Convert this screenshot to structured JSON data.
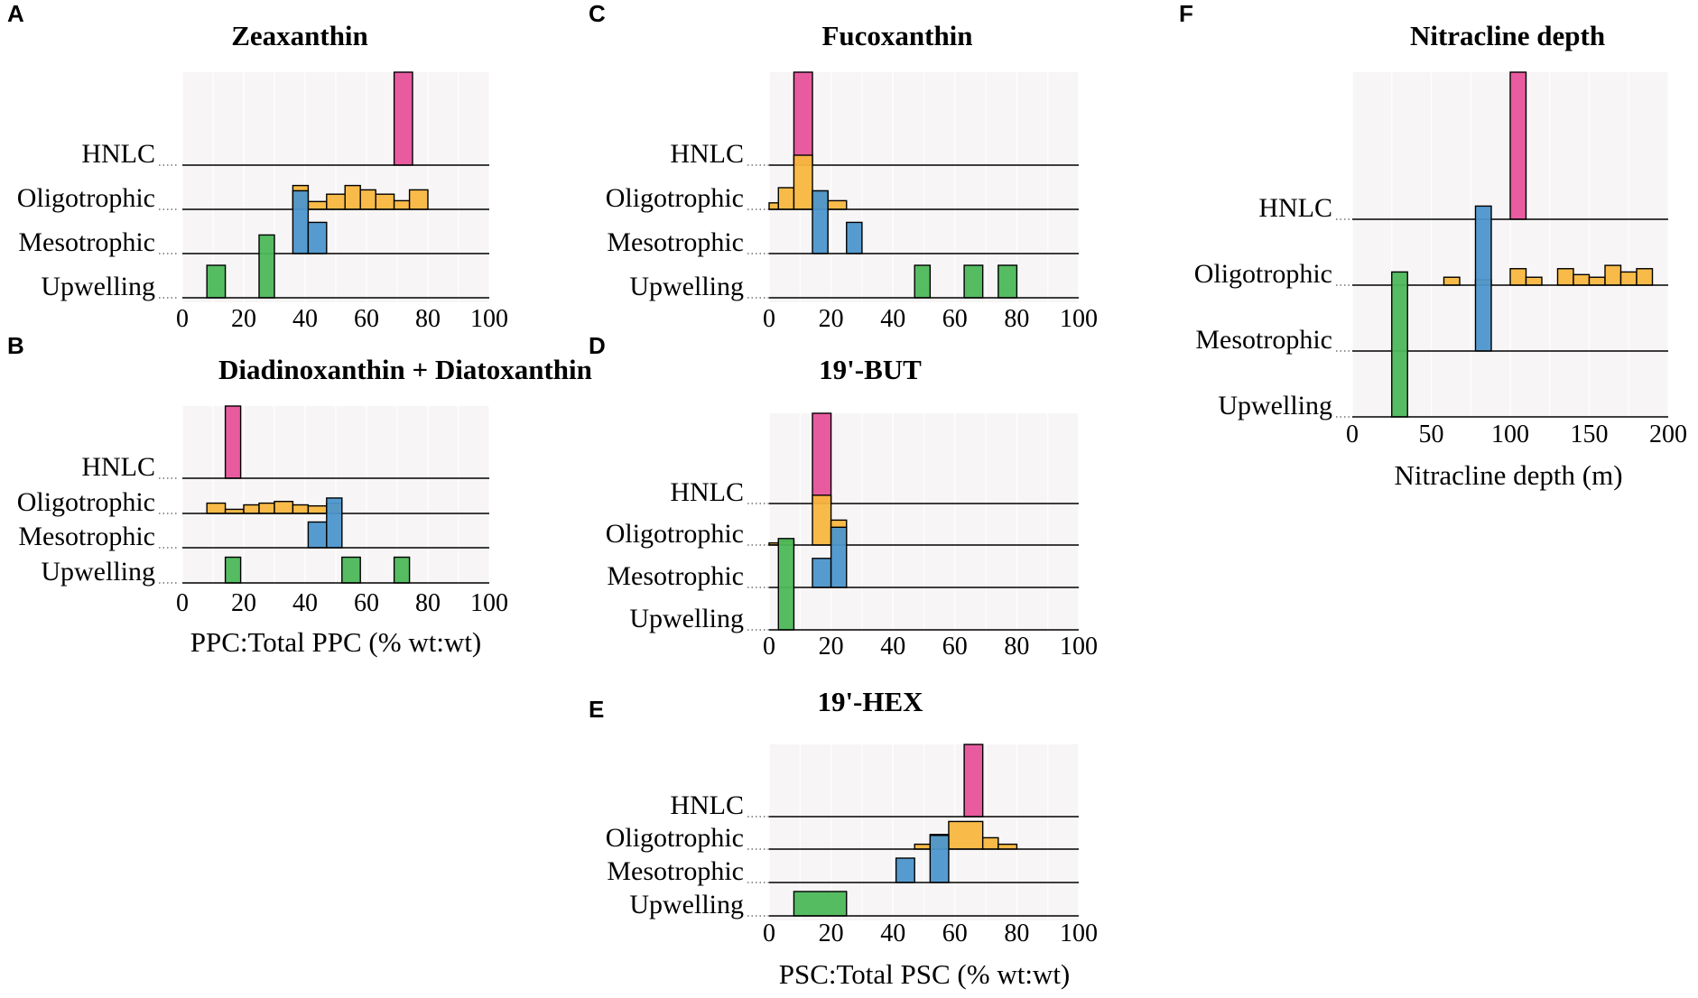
{
  "colors": {
    "HNLC": "#e7529a",
    "Oligotrophic": "#f8b73f",
    "Mesotrophic": "#4d96cc",
    "Upwelling": "#4db85a"
  },
  "chart_data": [
    {
      "id": "A",
      "letter": "A",
      "type": "area",
      "title": "Zeaxanthin",
      "xlim": [
        0,
        100
      ],
      "xticks": [
        0,
        20,
        40,
        60,
        80,
        100
      ],
      "xlabel": "",
      "categories": [
        "HNLC",
        "Oligotrophic",
        "Mesotrophic",
        "Upwelling"
      ],
      "series": [
        {
          "name": "HNLC",
          "bins": [
            [
              69,
              75,
              12
            ]
          ]
        },
        {
          "name": "Oligotrophic",
          "bins": [
            [
              36,
              41,
              0.55
            ],
            [
              41,
              47,
              0.18
            ],
            [
              47,
              53,
              0.35
            ],
            [
              53,
              58,
              0.55
            ],
            [
              58,
              63,
              0.45
            ],
            [
              63,
              69,
              0.35
            ],
            [
              69,
              74,
              0.2
            ],
            [
              74,
              80,
              0.45
            ]
          ]
        },
        {
          "name": "Mesotrophic",
          "bins": [
            [
              36,
              41,
              1.45
            ],
            [
              41,
              47,
              0.72
            ]
          ]
        },
        {
          "name": "Upwelling",
          "bins": [
            [
              8,
              14,
              0.75
            ],
            [
              25,
              30,
              1.45
            ]
          ]
        }
      ]
    },
    {
      "id": "B",
      "letter": "B",
      "type": "area",
      "title": "Diadinoxanthin + Diatoxanthin",
      "xlim": [
        0,
        100
      ],
      "xticks": [
        0,
        20,
        40,
        60,
        80,
        100
      ],
      "xlabel": "PPC:Total PPC (% wt:wt)",
      "categories": [
        "HNLC",
        "Oligotrophic",
        "Mesotrophic",
        "Upwelling"
      ],
      "series": [
        {
          "name": "HNLC",
          "bins": [
            [
              14,
              19,
              7
            ]
          ]
        },
        {
          "name": "Oligotrophic",
          "bins": [
            [
              8,
              14,
              0.3
            ],
            [
              14,
              20,
              0.12
            ],
            [
              20,
              25,
              0.25
            ],
            [
              25,
              30,
              0.3
            ],
            [
              30,
              36,
              0.35
            ],
            [
              36,
              41,
              0.25
            ],
            [
              41,
              47,
              0.22
            ],
            [
              47,
              52,
              0.3
            ]
          ]
        },
        {
          "name": "Mesotrophic",
          "bins": [
            [
              41,
              47,
              0.75
            ],
            [
              47,
              52,
              1.45
            ]
          ]
        },
        {
          "name": "Upwelling",
          "bins": [
            [
              14,
              19,
              0.75
            ],
            [
              52,
              58,
              0.75
            ],
            [
              69,
              74,
              0.75
            ]
          ]
        }
      ]
    },
    {
      "id": "C",
      "letter": "C",
      "type": "area",
      "title": "Fucoxanthin",
      "xlim": [
        0,
        100
      ],
      "xticks": [
        0,
        20,
        40,
        60,
        80,
        100
      ],
      "xlabel": "",
      "categories": [
        "HNLC",
        "Oligotrophic",
        "Mesotrophic",
        "Upwelling"
      ],
      "series": [
        {
          "name": "HNLC",
          "bins": [
            [
              8,
              14,
              12
            ]
          ]
        },
        {
          "name": "Oligotrophic",
          "bins": [
            [
              0,
              3,
              0.15
            ],
            [
              3,
              8,
              0.5
            ],
            [
              8,
              14,
              1.25
            ],
            [
              14,
              19,
              0.4
            ],
            [
              19,
              25,
              0.2
            ]
          ]
        },
        {
          "name": "Mesotrophic",
          "bins": [
            [
              14,
              19,
              1.45
            ],
            [
              25,
              30,
              0.72
            ]
          ]
        },
        {
          "name": "Upwelling",
          "bins": [
            [
              47,
              52,
              0.75
            ],
            [
              63,
              69,
              0.75
            ],
            [
              74,
              80,
              0.75
            ]
          ]
        }
      ]
    },
    {
      "id": "D",
      "letter": "D",
      "type": "area",
      "title": "19'-BUT",
      "xlim": [
        0,
        100
      ],
      "xticks": [
        0,
        20,
        40,
        60,
        80,
        100
      ],
      "xlabel": "",
      "categories": [
        "HNLC",
        "Oligotrophic",
        "Mesotrophic",
        "Upwelling"
      ],
      "series": [
        {
          "name": "HNLC",
          "bins": [
            [
              14,
              20,
              7
            ]
          ]
        },
        {
          "name": "Oligotrophic",
          "bins": [
            [
              0,
              3,
              0.05
            ],
            [
              3,
              8,
              0.1
            ],
            [
              14,
              20,
              1.2
            ],
            [
              20,
              25,
              0.6
            ]
          ]
        },
        {
          "name": "Mesotrophic",
          "bins": [
            [
              14,
              20,
              0.7
            ],
            [
              20,
              25,
              1.45
            ]
          ]
        },
        {
          "name": "Upwelling",
          "bins": [
            [
              3,
              8,
              2.2
            ]
          ]
        }
      ]
    },
    {
      "id": "E",
      "letter": "E",
      "type": "area",
      "title": "19'-HEX",
      "xlim": [
        0,
        100
      ],
      "xticks": [
        0,
        20,
        40,
        60,
        80,
        100
      ],
      "xlabel": "PSC:Total PSC (% wt:wt)",
      "categories": [
        "HNLC",
        "Oligotrophic",
        "Mesotrophic",
        "Upwelling"
      ],
      "series": [
        {
          "name": "HNLC",
          "bins": [
            [
              63,
              69,
              12
            ]
          ]
        },
        {
          "name": "Oligotrophic",
          "bins": [
            [
              47,
              52,
              0.15
            ],
            [
              52,
              58,
              0.45
            ],
            [
              58,
              69,
              0.85
            ],
            [
              69,
              74,
              0.35
            ],
            [
              74,
              80,
              0.15
            ]
          ]
        },
        {
          "name": "Mesotrophic",
          "bins": [
            [
              41,
              47,
              0.75
            ],
            [
              52,
              58,
              1.45
            ]
          ]
        },
        {
          "name": "Upwelling",
          "bins": [
            [
              8,
              25,
              0.75
            ]
          ]
        }
      ]
    },
    {
      "id": "F",
      "letter": "F",
      "type": "area",
      "title": "Nitracline depth",
      "xlim": [
        0,
        200
      ],
      "xticks": [
        0,
        50,
        100,
        150,
        200
      ],
      "xlabel": "Nitracline depth (m)",
      "categories": [
        "HNLC",
        "Oligotrophic",
        "Mesotrophic",
        "Upwelling"
      ],
      "series": [
        {
          "name": "HNLC",
          "bins": [
            [
              100,
              110,
              12
            ]
          ]
        },
        {
          "name": "Oligotrophic",
          "bins": [
            [
              58,
              68,
              0.12
            ],
            [
              68,
              78,
              0
            ],
            [
              78,
              88,
              0.08
            ],
            [
              88,
              100,
              0
            ],
            [
              100,
              110,
              0.25
            ],
            [
              110,
              120,
              0.12
            ],
            [
              120,
              130,
              0
            ],
            [
              130,
              140,
              0.25
            ],
            [
              140,
              150,
              0.16
            ],
            [
              150,
              160,
              0.12
            ],
            [
              160,
              170,
              0.3
            ],
            [
              170,
              180,
              0.2
            ],
            [
              180,
              190,
              0.25
            ]
          ]
        },
        {
          "name": "Mesotrophic",
          "bins": [
            [
              78,
              88,
              2.2
            ]
          ]
        },
        {
          "name": "Upwelling",
          "bins": [
            [
              25,
              35,
              2.2
            ]
          ]
        }
      ]
    }
  ]
}
